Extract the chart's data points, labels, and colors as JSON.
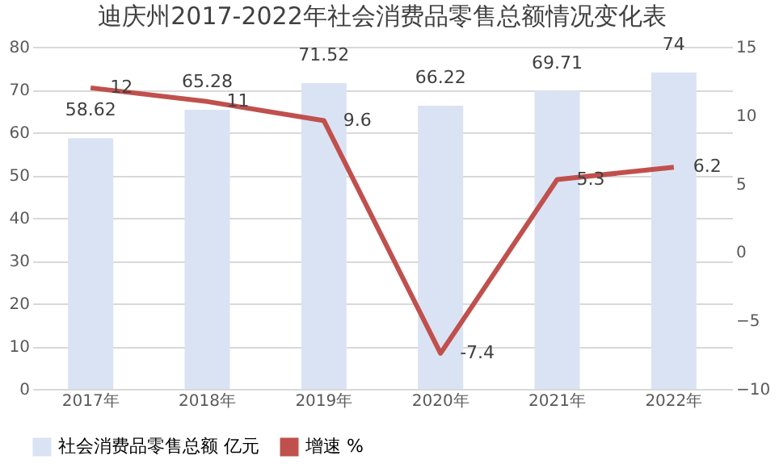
{
  "chart_data": {
    "type": "bar",
    "title": "迪庆州2017-2022年社会消费品零售总额情况变化表",
    "categories": [
      "2017年",
      "2018年",
      "2019年",
      "2020年",
      "2021年",
      "2022年"
    ],
    "series": [
      {
        "name": "社会消费品零售总额 亿元",
        "color": "#dae3f3",
        "values": [
          58.62,
          65.28,
          71.52,
          66.22,
          69.71,
          74
        ]
      },
      {
        "name": "增速 %",
        "type": "line",
        "axis": "y2",
        "color": "#c0504d",
        "values": [
          12,
          11,
          9.6,
          -7.4,
          5.3,
          6.2
        ]
      }
    ],
    "ylim": [
      0,
      80
    ],
    "yticks": [
      0,
      10,
      20,
      30,
      40,
      50,
      60,
      70,
      80
    ],
    "y2lim": [
      -10,
      15
    ],
    "y2ticks": [
      -10,
      -5,
      0,
      5,
      10,
      15
    ],
    "grid": "y",
    "legend": "bottom",
    "data_labels": true,
    "marker": "none",
    "line_style": "solid"
  }
}
